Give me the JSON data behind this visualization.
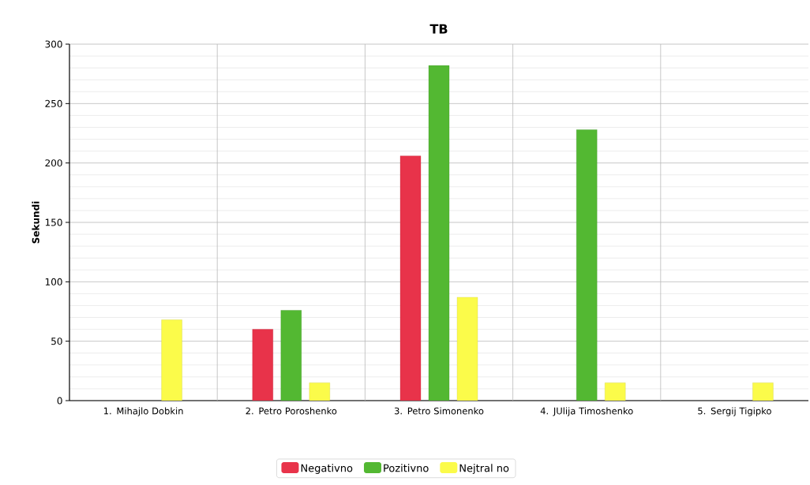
{
  "chart_data": {
    "type": "bar",
    "title": "TB",
    "ylabel": "Sekundi",
    "categories": [
      "1. Mihajlo Dobkin",
      "2. Petro Poroshenko",
      "3. Petro Simonenko",
      "4. JUlija Timoshenko",
      "5. Sergij Tigipko"
    ],
    "series": [
      {
        "name": "Negativno",
        "color": "#e8334a",
        "values": [
          null,
          60,
          206,
          null,
          null
        ]
      },
      {
        "name": "Pozitivno",
        "color": "#53b832",
        "values": [
          null,
          76,
          282,
          228,
          null
        ]
      },
      {
        "name": "Nejtral no",
        "color": "#fbfb4a",
        "values": [
          68,
          15,
          87,
          15,
          15
        ]
      }
    ],
    "ylim": [
      0,
      300
    ],
    "yticks": [
      0,
      50,
      100,
      150,
      200,
      250,
      300
    ],
    "grid": true,
    "legend": "bottom"
  }
}
